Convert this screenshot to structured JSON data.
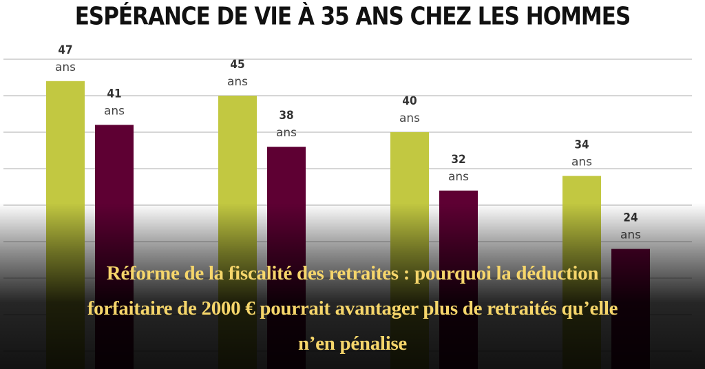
{
  "chart_data": {
    "type": "bar",
    "title": "ESPÉRANCE DE VIE À 35 ANS CHEZ LES HOMMES",
    "categories": [
      "",
      "",
      "",
      ""
    ],
    "unit_label": "ans",
    "series": [
      {
        "values": [
          47,
          45,
          40,
          34
        ],
        "color": "#c2c841"
      },
      {
        "values": [
          41,
          38,
          32,
          24
        ],
        "color": "#5e0033"
      }
    ],
    "ylim": [
      0,
      50
    ],
    "grid": true,
    "grid_step": 5
  },
  "headline": {
    "lines": [
      "Réforme de la fiscalité des retraites : pourquoi la déduction",
      "forfaitaire de 2000 € pourrait avantager plus de retraités qu’elle",
      "n’en pénalise"
    ],
    "color": "#f6d66b"
  }
}
